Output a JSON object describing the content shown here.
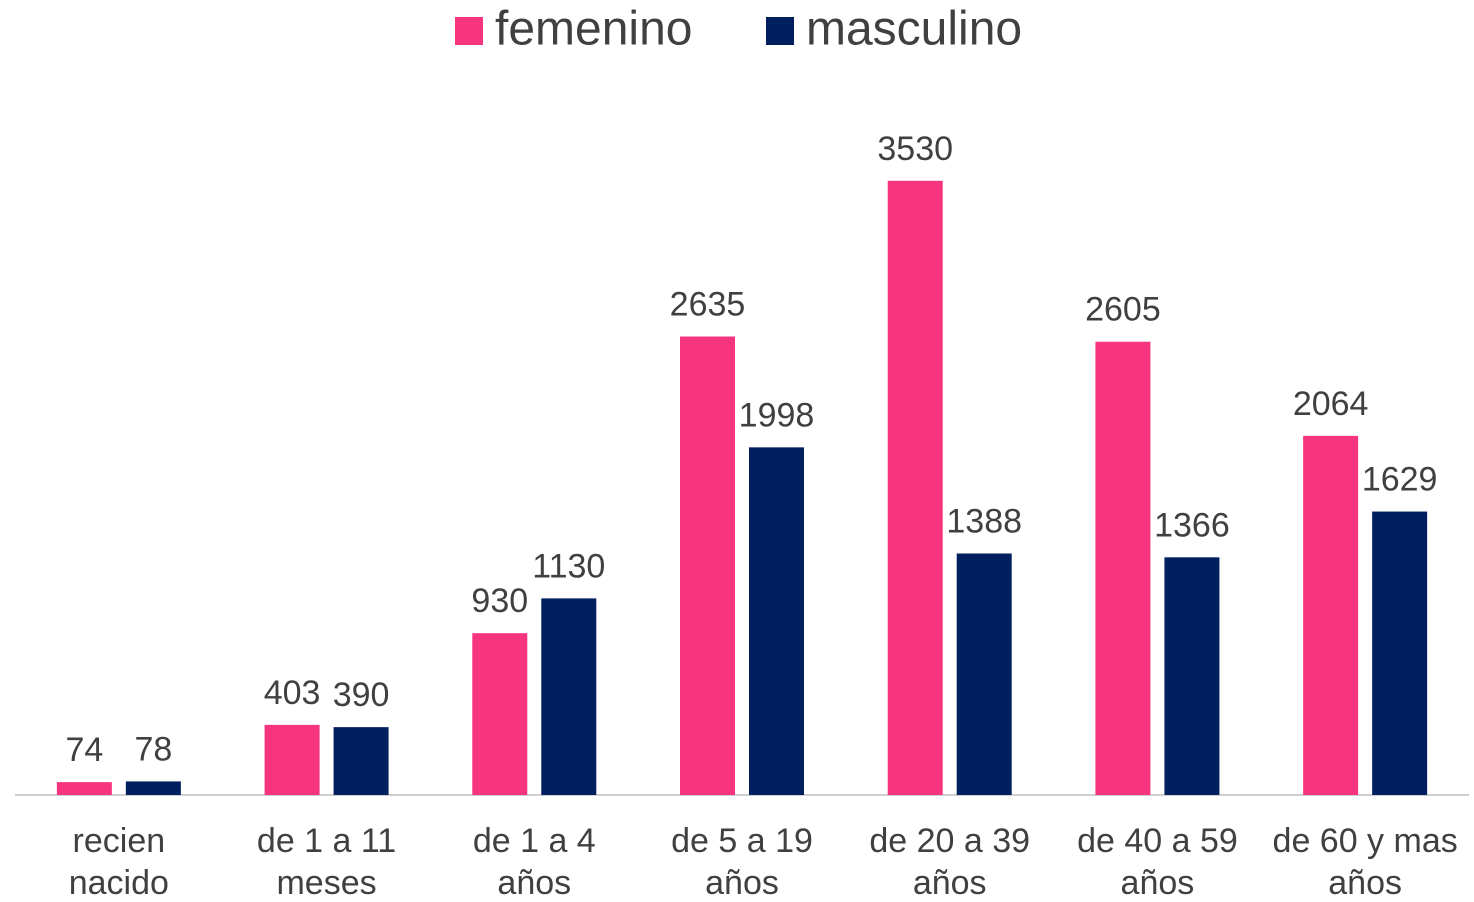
{
  "chart_data": {
    "type": "bar",
    "categories": [
      "recien nacido",
      "de 1 a 11 meses",
      "de 1 a 4 años",
      "de 5 a 19 años",
      "de 20 a 39 años",
      "de 40 a 59 años",
      "de 60 y mas años"
    ],
    "series": [
      {
        "name": "femenino",
        "color": "#f7357e",
        "values": [
          74,
          403,
          930,
          2635,
          3530,
          2605,
          2064
        ]
      },
      {
        "name": "masculino",
        "color": "#001f5f",
        "values": [
          78,
          390,
          1130,
          1998,
          1388,
          1366,
          1629
        ]
      }
    ],
    "ylim": [
      0,
      4000
    ]
  }
}
